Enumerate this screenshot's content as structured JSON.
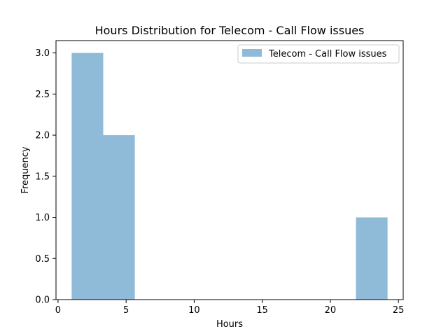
{
  "chart_data": {
    "type": "bar",
    "title": "Hours Distribution for Telecom - Call Flow issues",
    "xlabel": "Hours",
    "ylabel": "Frequency",
    "xlim": [
      -0.15,
      25.35
    ],
    "ylim": [
      0,
      3.15
    ],
    "xticks": [
      0,
      5,
      10,
      15,
      20,
      25
    ],
    "yticks": [
      0.0,
      0.5,
      1.0,
      1.5,
      2.0,
      2.5,
      3.0
    ],
    "xtick_labels": [
      "0",
      "5",
      "10",
      "15",
      "20",
      "25"
    ],
    "ytick_labels": [
      "0.0",
      "0.5",
      "1.0",
      "1.5",
      "2.0",
      "2.5",
      "3.0"
    ],
    "grid": false,
    "legend_position": "top-right",
    "series": [
      {
        "name": "Telecom - Call Flow issues",
        "color": "#8fbbd9",
        "bins": [
          {
            "start": 1.0,
            "end": 3.32,
            "count": 3
          },
          {
            "start": 3.32,
            "end": 5.64,
            "count": 2
          },
          {
            "start": 5.64,
            "end": 7.96,
            "count": 0
          },
          {
            "start": 7.96,
            "end": 10.28,
            "count": 0
          },
          {
            "start": 10.28,
            "end": 12.6,
            "count": 0
          },
          {
            "start": 12.6,
            "end": 14.92,
            "count": 0
          },
          {
            "start": 14.92,
            "end": 17.24,
            "count": 0
          },
          {
            "start": 17.24,
            "end": 19.56,
            "count": 0
          },
          {
            "start": 19.56,
            "end": 21.88,
            "count": 0
          },
          {
            "start": 21.88,
            "end": 24.2,
            "count": 1
          }
        ]
      }
    ]
  }
}
